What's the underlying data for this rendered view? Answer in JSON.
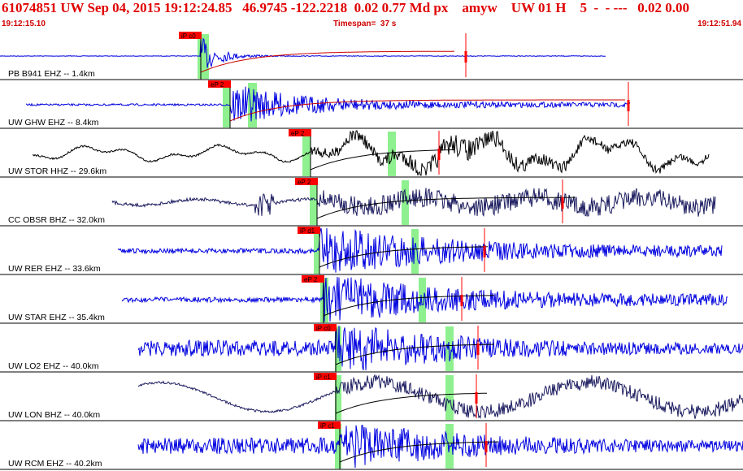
{
  "header": {
    "title": "61074851 UW Sep 04, 2015 19:12:24.85   46.9745 -122.2218  0.02 0.77 Md px    amyw    UW 01 H    5  -  - ---   0.02 0.00",
    "start_time": "19:12:15.10",
    "timespan": "Timespan=  37 s",
    "end_time": "19:12:51.94"
  },
  "colors": {
    "title": "#e00000",
    "blue_trace": "#0000e0",
    "black_trace": "#000000",
    "dark_trace": "#1c1c60",
    "pick_flag": "#ff0000",
    "window_band": "#8ef08e",
    "decay_curve": "#cc0000"
  },
  "traces": [
    {
      "label": "PB B941 EHZ --  1.4km",
      "pick": "iP c0",
      "color": "blue"
    },
    {
      "label": "UW GHW EHZ --  8.4km",
      "pick": "eP 2",
      "color": "blue"
    },
    {
      "label": "UW STOR HHZ --  29.6km",
      "pick": "eP 2",
      "color": "black"
    },
    {
      "label": "CC OBSR BHZ --  32.0km",
      "pick": "eP 2",
      "color": "dark"
    },
    {
      "label": "UW RER EHZ --  33.6km",
      "pick": "iP d1",
      "color": "blue"
    },
    {
      "label": "UW STAR EHZ --  35.4km",
      "pick": "eP 2",
      "color": "blue"
    },
    {
      "label": "UW LO2 EHZ --  40.0km",
      "pick": "iP c0",
      "color": "blue"
    },
    {
      "label": "UW LON BHZ --  40.0km",
      "pick": "iP c1",
      "color": "dark"
    },
    {
      "label": "UW RCM EHZ --  40.2km",
      "pick": "iP c1",
      "color": "blue"
    }
  ]
}
